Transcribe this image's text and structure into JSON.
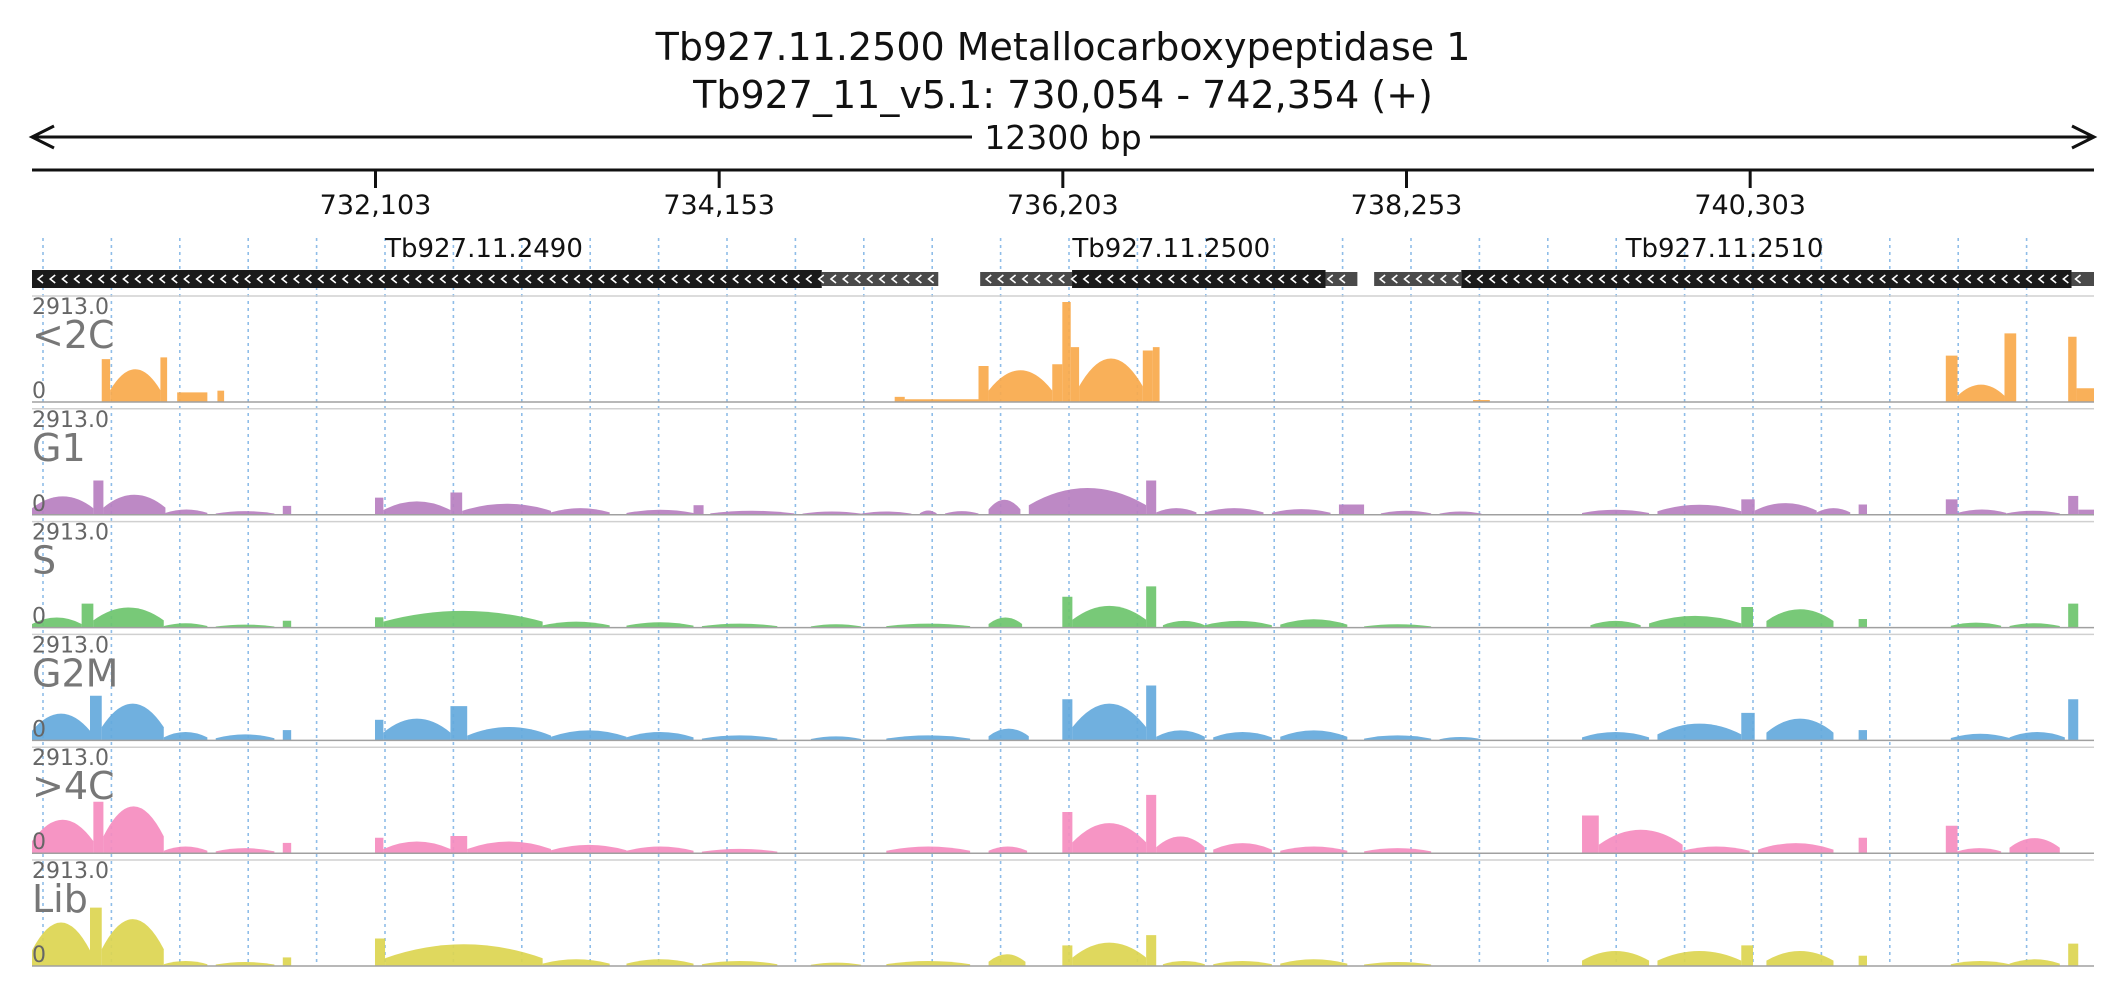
{
  "header": {
    "title_line1": "Tb927.11.2500  Metallocarboxypeptidase 1",
    "title_line2": "Tb927_11_v5.1: 730,054 - 742,354 (+)"
  },
  "chart_data": {
    "type": "area",
    "title": "Tb927.11.2500  Metallocarboxypeptidase 1",
    "subtitle": "Tb927_11_v5.1: 730,054 - 742,354 (+)",
    "span_label": "12300 bp",
    "x_range": [
      730054,
      742354
    ],
    "x_ticks": [
      {
        "pos": 732103,
        "label": "732,103"
      },
      {
        "pos": 734153,
        "label": "734,153"
      },
      {
        "pos": 736203,
        "label": "736,203"
      },
      {
        "pos": 738253,
        "label": "738,253"
      },
      {
        "pos": 740303,
        "label": "740,303"
      }
    ],
    "genes": [
      {
        "name": "Tb927.11.2490",
        "label_pos": 732750,
        "cds": [
          730054,
          734765
        ],
        "utr": [
          [
            734765,
            735460
          ]
        ],
        "strand": "-"
      },
      {
        "name": "Tb927.11.2500",
        "label_pos": 736850,
        "cds": [
          736258,
          737770
        ],
        "utr": [
          [
            735710,
            736258
          ],
          [
            737770,
            737960
          ]
        ],
        "strand": "-"
      },
      {
        "name": "Tb927.11.2510",
        "label_pos": 740150,
        "cds": [
          738580,
          742220
        ],
        "utr": [
          [
            738060,
            738580
          ],
          [
            742220,
            742354
          ]
        ],
        "strand": "-"
      }
    ],
    "ylim": [
      0,
      2913.0
    ],
    "ymax_label": "2913.0",
    "ymin_label": "0",
    "tracks": [
      {
        "name": "<2C",
        "color": "#f9a94b",
        "segments": [
          [
            730470,
            730520,
            1250
          ],
          [
            730520,
            730820,
            980,
            "hill"
          ],
          [
            730820,
            730860,
            1300
          ],
          [
            730920,
            731100,
            280
          ],
          [
            731160,
            731200,
            330
          ],
          [
            735200,
            735260,
            150
          ],
          [
            735260,
            735700,
            80
          ],
          [
            735700,
            735760,
            1050
          ],
          [
            735760,
            736140,
            950,
            "hill"
          ],
          [
            736140,
            736200,
            1100
          ],
          [
            736200,
            736250,
            2913
          ],
          [
            736250,
            736300,
            1600
          ],
          [
            736300,
            736680,
            1300,
            "hill"
          ],
          [
            736680,
            736740,
            1500
          ],
          [
            736740,
            736780,
            1600
          ],
          [
            738650,
            738750,
            60
          ],
          [
            741470,
            741540,
            1350
          ],
          [
            741540,
            741820,
            520,
            "hill"
          ],
          [
            741820,
            741890,
            2000
          ],
          [
            742200,
            742250,
            1900
          ],
          [
            742250,
            742354,
            400
          ]
        ]
      },
      {
        "name": "G1",
        "color": "#b77fc0",
        "segments": [
          [
            730054,
            730420,
            550,
            "hill"
          ],
          [
            730420,
            730480,
            1000
          ],
          [
            730480,
            730850,
            600,
            "hill"
          ],
          [
            730850,
            731100,
            160,
            "hill"
          ],
          [
            731150,
            731500,
            110,
            "hill"
          ],
          [
            731550,
            731600,
            260
          ],
          [
            732100,
            732150,
            500
          ],
          [
            732150,
            732550,
            400,
            "hill"
          ],
          [
            732550,
            732620,
            650
          ],
          [
            732620,
            733150,
            330,
            "hill"
          ],
          [
            733150,
            733500,
            200,
            "hill"
          ],
          [
            733600,
            734000,
            150,
            "hill"
          ],
          [
            734000,
            734060,
            280
          ],
          [
            734100,
            734600,
            120,
            "hill"
          ],
          [
            734650,
            735000,
            100,
            "hill"
          ],
          [
            735000,
            735300,
            100,
            "hill"
          ],
          [
            735350,
            735450,
            130,
            "hill"
          ],
          [
            735500,
            735700,
            110,
            "hill"
          ],
          [
            735760,
            735950,
            450,
            "hill"
          ],
          [
            736000,
            736700,
            800,
            "hill"
          ],
          [
            736700,
            736760,
            1000
          ],
          [
            736760,
            737000,
            200,
            "hill"
          ],
          [
            737050,
            737400,
            200,
            "hill"
          ],
          [
            737450,
            737800,
            170,
            "hill"
          ],
          [
            737850,
            738000,
            300
          ],
          [
            738100,
            738400,
            120,
            "hill"
          ],
          [
            738450,
            738700,
            100,
            "hill"
          ],
          [
            739300,
            739700,
            150,
            "hill"
          ],
          [
            739750,
            740250,
            300,
            "hill"
          ],
          [
            740250,
            740330,
            450
          ],
          [
            740330,
            740700,
            350,
            "hill"
          ],
          [
            740700,
            740900,
            200,
            "hill"
          ],
          [
            740950,
            741000,
            300
          ],
          [
            741470,
            741540,
            450
          ],
          [
            741540,
            741830,
            160,
            "hill"
          ],
          [
            741830,
            742150,
            120,
            "hill"
          ],
          [
            742200,
            742260,
            550
          ],
          [
            742260,
            742354,
            150
          ]
        ]
      },
      {
        "name": "S",
        "color": "#6dc46d",
        "segments": [
          [
            730054,
            730350,
            300,
            "hill"
          ],
          [
            730350,
            730420,
            700
          ],
          [
            730420,
            730840,
            600,
            "hill"
          ],
          [
            730840,
            731100,
            130,
            "hill"
          ],
          [
            731150,
            731500,
            90,
            "hill"
          ],
          [
            731550,
            731600,
            200
          ],
          [
            732100,
            732150,
            300
          ],
          [
            732150,
            733100,
            500,
            "hill"
          ],
          [
            733100,
            733500,
            180,
            "hill"
          ],
          [
            733600,
            734000,
            160,
            "hill"
          ],
          [
            734050,
            734500,
            120,
            "hill"
          ],
          [
            734700,
            735000,
            100,
            "hill"
          ],
          [
            735150,
            735650,
            120,
            "hill"
          ],
          [
            735760,
            735960,
            300,
            "hill"
          ],
          [
            736200,
            736260,
            900
          ],
          [
            736260,
            736700,
            650,
            "hill"
          ],
          [
            736700,
            736760,
            1200
          ],
          [
            736800,
            737050,
            200,
            "hill"
          ],
          [
            737050,
            737450,
            200,
            "hill"
          ],
          [
            737500,
            737900,
            250,
            "hill"
          ],
          [
            738000,
            738400,
            100,
            "hill"
          ],
          [
            739350,
            739650,
            200,
            "hill"
          ],
          [
            739700,
            740250,
            350,
            "hill"
          ],
          [
            740250,
            740320,
            600
          ],
          [
            740400,
            740800,
            550,
            "hill"
          ],
          [
            740950,
            741000,
            250
          ],
          [
            741500,
            741800,
            150,
            "hill"
          ],
          [
            741850,
            742150,
            130,
            "hill"
          ],
          [
            742200,
            742260,
            700
          ]
        ]
      },
      {
        "name": "G2M",
        "color": "#64a9dc",
        "segments": [
          [
            730054,
            730400,
            800,
            "hill"
          ],
          [
            730400,
            730470,
            1300
          ],
          [
            730470,
            730840,
            1100,
            "hill"
          ],
          [
            730840,
            731100,
            250,
            "hill"
          ],
          [
            731150,
            731500,
            180,
            "hill"
          ],
          [
            731550,
            731600,
            300
          ],
          [
            732100,
            732150,
            600
          ],
          [
            732150,
            732550,
            650,
            "hill"
          ],
          [
            732550,
            732650,
            1000
          ],
          [
            732650,
            733150,
            400,
            "hill"
          ],
          [
            733150,
            733600,
            300,
            "hill"
          ],
          [
            733600,
            734000,
            250,
            "hill"
          ],
          [
            734050,
            734500,
            150,
            "hill"
          ],
          [
            734700,
            735000,
            120,
            "hill"
          ],
          [
            735150,
            735650,
            150,
            "hill"
          ],
          [
            735760,
            736000,
            350,
            "hill"
          ],
          [
            736200,
            736260,
            1200
          ],
          [
            736260,
            736700,
            1100,
            "hill"
          ],
          [
            736700,
            736760,
            1600
          ],
          [
            736760,
            737050,
            300,
            "hill"
          ],
          [
            737100,
            737450,
            250,
            "hill"
          ],
          [
            737500,
            737900,
            300,
            "hill"
          ],
          [
            738000,
            738400,
            150,
            "hill"
          ],
          [
            738450,
            738700,
            100,
            "hill"
          ],
          [
            739300,
            739700,
            250,
            "hill"
          ],
          [
            739750,
            740250,
            500,
            "hill"
          ],
          [
            740250,
            740330,
            800
          ],
          [
            740400,
            740800,
            650,
            "hill"
          ],
          [
            740950,
            741000,
            300
          ],
          [
            741500,
            741850,
            200,
            "hill"
          ],
          [
            741850,
            742180,
            250,
            "hill"
          ],
          [
            742200,
            742260,
            1200
          ]
        ]
      },
      {
        "name": ">4C",
        "color": "#f58cbf",
        "segments": [
          [
            730054,
            730420,
            1000,
            "hill"
          ],
          [
            730420,
            730480,
            1500
          ],
          [
            730480,
            730840,
            1400,
            "hill"
          ],
          [
            730840,
            731100,
            200,
            "hill"
          ],
          [
            731150,
            731500,
            150,
            "hill"
          ],
          [
            731550,
            731600,
            300
          ],
          [
            732100,
            732150,
            450
          ],
          [
            732150,
            732550,
            350,
            "hill"
          ],
          [
            732550,
            732650,
            500
          ],
          [
            732650,
            733150,
            350,
            "hill"
          ],
          [
            733150,
            733600,
            250,
            "hill"
          ],
          [
            733600,
            734000,
            200,
            "hill"
          ],
          [
            734050,
            734500,
            130,
            "hill"
          ],
          [
            735150,
            735650,
            200,
            "hill"
          ],
          [
            735760,
            735990,
            200,
            "hill"
          ],
          [
            736200,
            736260,
            1200
          ],
          [
            736260,
            736700,
            900,
            "hill"
          ],
          [
            736700,
            736760,
            1700
          ],
          [
            736760,
            737050,
            500,
            "hill"
          ],
          [
            737100,
            737450,
            300,
            "hill"
          ],
          [
            737500,
            737900,
            200,
            "hill"
          ],
          [
            738000,
            738400,
            150,
            "hill"
          ],
          [
            739300,
            739400,
            1100
          ],
          [
            739400,
            739900,
            700,
            "hill"
          ],
          [
            739900,
            740300,
            200,
            "hill"
          ],
          [
            740350,
            740800,
            300,
            "hill"
          ],
          [
            740950,
            741000,
            450
          ],
          [
            741470,
            741540,
            800
          ],
          [
            741540,
            741800,
            150,
            "hill"
          ],
          [
            741850,
            742150,
            450,
            "hill"
          ]
        ]
      },
      {
        "name": "Lib",
        "color": "#dcd550",
        "segments": [
          [
            730054,
            730400,
            1300,
            "hill"
          ],
          [
            730400,
            730470,
            1700
          ],
          [
            730470,
            730840,
            1400,
            "hill"
          ],
          [
            730840,
            731100,
            150,
            "hill"
          ],
          [
            731150,
            731500,
            120,
            "hill"
          ],
          [
            731550,
            731600,
            250
          ],
          [
            732100,
            732160,
            800
          ],
          [
            732160,
            733100,
            650,
            "hill"
          ],
          [
            733100,
            733500,
            200,
            "hill"
          ],
          [
            733600,
            734000,
            200,
            "hill"
          ],
          [
            734050,
            734500,
            150,
            "hill"
          ],
          [
            734700,
            735000,
            100,
            "hill"
          ],
          [
            735150,
            735650,
            150,
            "hill"
          ],
          [
            735760,
            735980,
            350,
            "hill"
          ],
          [
            736200,
            736260,
            600
          ],
          [
            736260,
            736700,
            700,
            "hill"
          ],
          [
            736700,
            736760,
            900
          ],
          [
            736800,
            737050,
            150,
            "hill"
          ],
          [
            737100,
            737450,
            150,
            "hill"
          ],
          [
            737500,
            737900,
            200,
            "hill"
          ],
          [
            738000,
            738400,
            120,
            "hill"
          ],
          [
            739300,
            739700,
            450,
            "hill"
          ],
          [
            739750,
            740250,
            450,
            "hill"
          ],
          [
            740250,
            740320,
            600
          ],
          [
            740400,
            740800,
            450,
            "hill"
          ],
          [
            740950,
            741000,
            300
          ],
          [
            741500,
            741850,
            150,
            "hill"
          ],
          [
            741850,
            742150,
            200,
            "hill"
          ],
          [
            742200,
            742260,
            650
          ]
        ]
      }
    ],
    "grid": "dotted-vertical",
    "gridline_color": "#8fbde8"
  }
}
